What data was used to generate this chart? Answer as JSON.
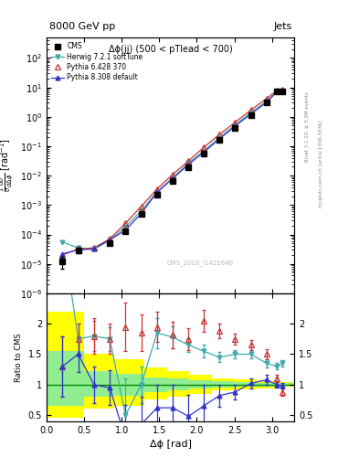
{
  "title_top": "8000 GeV pp",
  "title_right": "Jets",
  "annotation": "Δϕ(jj) (500 < pTlead < 700)",
  "watermark": "CMS_2016_I1421646",
  "ylabel_ratio": "Ratio to CMS",
  "xlabel": "Δϕ [rad]",
  "xlim": [
    0,
    3.3
  ],
  "ylim_main": [
    1e-06,
    500
  ],
  "ylim_ratio": [
    0.4,
    2.5
  ],
  "cms_x": [
    0.21,
    0.42,
    0.84,
    1.05,
    1.26,
    1.47,
    1.68,
    1.89,
    2.09,
    2.3,
    2.51,
    2.72,
    2.93,
    3.07,
    3.14
  ],
  "cms_y": [
    1.2e-05,
    2.8e-05,
    5e-05,
    0.00013,
    0.0005,
    0.0022,
    0.0065,
    0.019,
    0.058,
    0.16,
    0.43,
    1.15,
    3.1,
    7.2,
    7.5
  ],
  "cms_yerr_lo": [
    5e-06,
    5e-06,
    5e-06,
    1e-05,
    6e-05,
    0.00025,
    0.0006,
    0.0018,
    0.004,
    0.012,
    0.025,
    0.07,
    0.18,
    0.4,
    0.4
  ],
  "cms_yerr_hi": [
    5e-06,
    5e-06,
    5e-06,
    1e-05,
    6e-05,
    0.00025,
    0.0006,
    0.0018,
    0.004,
    0.012,
    0.025,
    0.07,
    0.18,
    0.4,
    0.4
  ],
  "herwig_x": [
    0.21,
    0.42,
    0.63,
    0.84,
    1.05,
    1.26,
    1.47,
    1.68,
    1.89,
    2.09,
    2.3,
    2.51,
    2.72,
    2.93,
    3.07,
    3.14
  ],
  "herwig_y": [
    5.5e-05,
    3.5e-05,
    3.2e-05,
    6.5e-05,
    0.00018,
    0.00065,
    0.0028,
    0.0085,
    0.027,
    0.068,
    0.195,
    0.53,
    1.38,
    3.4,
    7.3,
    7.5
  ],
  "herwig_color": "#44AAAA",
  "pythia6_x": [
    0.21,
    0.42,
    0.63,
    0.84,
    1.05,
    1.26,
    1.47,
    1.68,
    1.89,
    2.09,
    2.3,
    2.51,
    2.72,
    2.93,
    3.07,
    3.14
  ],
  "pythia6_y": [
    2e-05,
    3.2e-05,
    3.5e-05,
    7e-05,
    0.00024,
    0.0009,
    0.0035,
    0.011,
    0.032,
    0.09,
    0.25,
    0.65,
    1.7,
    4.2,
    8.0,
    8.2
  ],
  "pythia6_color": "#CC3333",
  "pythia8_x": [
    0.21,
    0.42,
    0.63,
    0.84,
    1.05,
    1.26,
    1.47,
    1.68,
    1.89,
    2.09,
    2.3,
    2.51,
    2.72,
    2.93,
    3.07,
    3.14
  ],
  "pythia8_y": [
    2.2e-05,
    3e-05,
    3.2e-05,
    6.5e-05,
    0.00014,
    0.00052,
    0.0027,
    0.008,
    0.024,
    0.062,
    0.175,
    0.48,
    1.25,
    3.1,
    7.2,
    7.5
  ],
  "pythia8_color": "#3333CC",
  "herwig_ratio": [
    3.5,
    1.75,
    1.8,
    1.75,
    0.5,
    1.0,
    1.85,
    1.78,
    1.65,
    1.55,
    1.45,
    1.5,
    1.5,
    1.35,
    1.3,
    1.35
  ],
  "pythia6_ratio": [
    1.3,
    1.75,
    1.8,
    1.75,
    1.95,
    1.85,
    1.95,
    1.82,
    1.75,
    2.05,
    1.88,
    1.75,
    1.65,
    1.5,
    1.1,
    0.88
  ],
  "pythia8_ratio": [
    1.3,
    1.5,
    1.0,
    0.95,
    0.12,
    0.35,
    0.62,
    0.62,
    0.48,
    0.65,
    0.82,
    0.88,
    1.02,
    1.08,
    1.0,
    0.98
  ],
  "herwig_ratio_err": [
    0.8,
    0.25,
    0.25,
    0.2,
    0.6,
    0.3,
    0.25,
    0.18,
    0.12,
    0.1,
    0.08,
    0.07,
    0.07,
    0.07,
    0.05,
    0.05
  ],
  "pythia6_ratio_err": [
    0.5,
    0.25,
    0.3,
    0.25,
    0.4,
    0.3,
    0.25,
    0.22,
    0.18,
    0.18,
    0.12,
    0.09,
    0.08,
    0.08,
    0.06,
    0.06
  ],
  "pythia8_ratio_err": [
    0.5,
    0.3,
    0.3,
    0.28,
    0.55,
    0.45,
    0.38,
    0.38,
    0.35,
    0.35,
    0.18,
    0.12,
    0.08,
    0.08,
    0.05,
    0.05
  ],
  "green_band_x": [
    0.0,
    0.5,
    0.9,
    1.3,
    1.6,
    1.9,
    2.2,
    2.5,
    2.8,
    3.1
  ],
  "green_band_width": [
    0.5,
    0.4,
    0.4,
    0.3,
    0.3,
    0.3,
    0.3,
    0.3,
    0.3,
    0.3
  ],
  "green_band_low": [
    0.65,
    0.8,
    0.82,
    0.88,
    0.9,
    0.93,
    0.95,
    0.96,
    0.97,
    0.98
  ],
  "green_band_high": [
    1.55,
    1.22,
    1.18,
    1.12,
    1.1,
    1.07,
    1.05,
    1.04,
    1.03,
    1.02
  ],
  "yellow_band_x": [
    0.0,
    0.5,
    0.9,
    1.3,
    1.6,
    1.9,
    2.2,
    2.5,
    2.8,
    3.1
  ],
  "yellow_band_width": [
    0.5,
    0.4,
    0.4,
    0.3,
    0.3,
    0.3,
    0.3,
    0.3,
    0.3,
    0.3
  ],
  "yellow_band_low": [
    0.45,
    0.6,
    0.65,
    0.75,
    0.8,
    0.85,
    0.9,
    0.92,
    0.94,
    0.96
  ],
  "yellow_band_high": [
    2.2,
    1.5,
    1.42,
    1.28,
    1.22,
    1.16,
    1.1,
    1.08,
    1.06,
    1.04
  ],
  "rivet_text": "Rivet 3.1.10, ≥ 3.3M events",
  "mcplots_text": "mcplots.cern.ch [arXiv:1306.3436]"
}
